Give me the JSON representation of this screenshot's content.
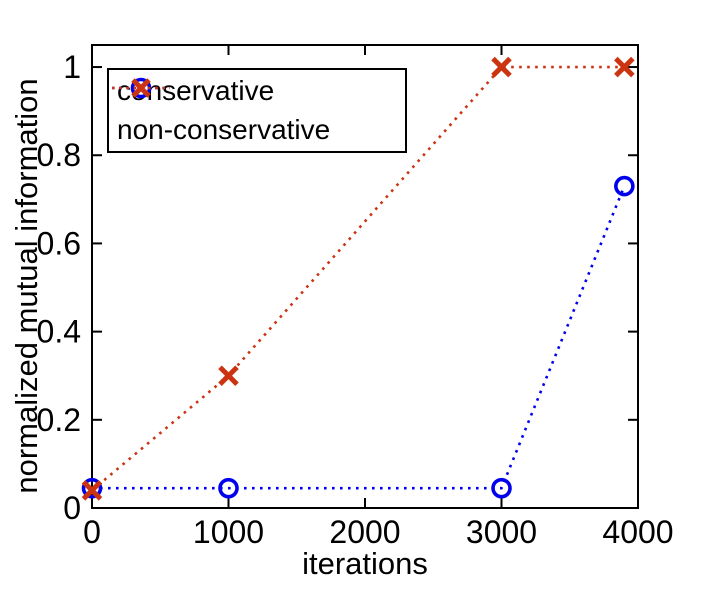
{
  "figure": {
    "background": "#ffffff",
    "axis_color": "#000000"
  },
  "chart_data": {
    "type": "line",
    "title": "",
    "xlabel": "iterations",
    "ylabel": "normalized mutual information",
    "xlim": [
      0,
      4000
    ],
    "ylim": [
      0,
      1.05
    ],
    "xticks": [
      0,
      1000,
      2000,
      3000,
      4000
    ],
    "yticks": [
      0,
      0.2,
      0.4,
      0.6,
      0.8,
      1
    ],
    "grid": false,
    "legend_position": "top-left",
    "series": [
      {
        "name": "conservative",
        "color": "#0000ee",
        "marker": "circle",
        "line_style": "dotted",
        "x": [
          0,
          1000,
          3000,
          3900
        ],
        "y": [
          0.045,
          0.045,
          0.045,
          0.73
        ]
      },
      {
        "name": "non-conservative",
        "color": "#cc3311",
        "marker": "x",
        "line_style": "dotted",
        "x": [
          0,
          1000,
          3000,
          3900
        ],
        "y": [
          0.04,
          0.3,
          1.0,
          1.0
        ]
      }
    ]
  }
}
